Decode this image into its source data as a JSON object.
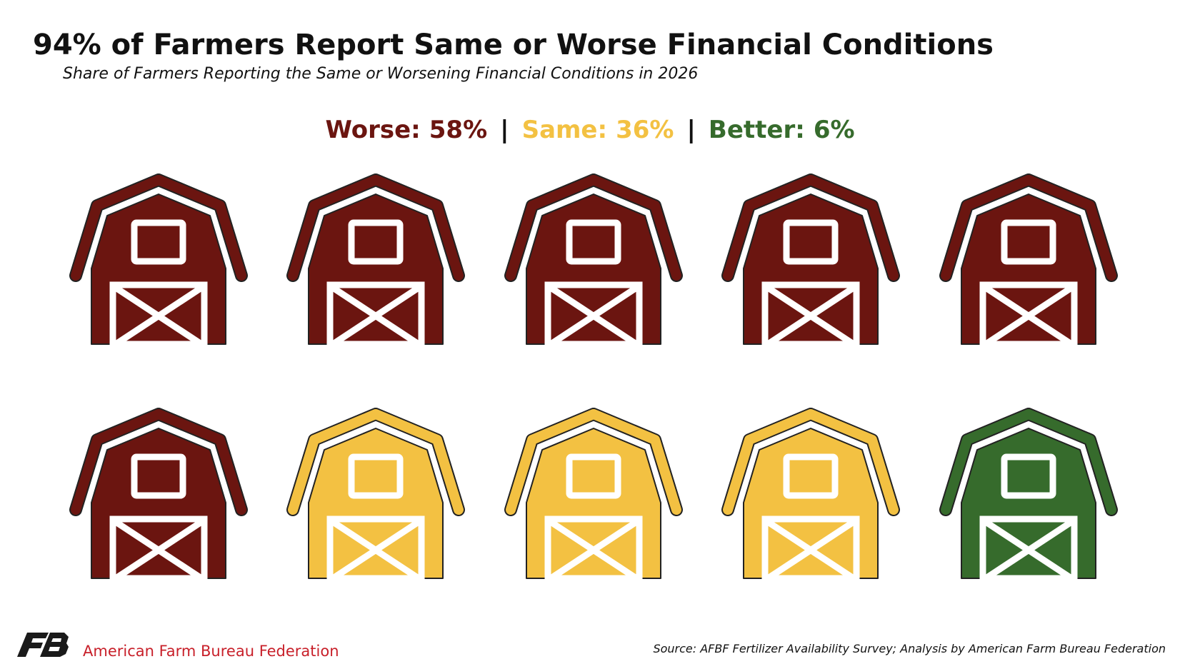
{
  "chart_data": {
    "type": "pictogram",
    "title": "94% of Farmers Report Same or Worse Financial Conditions",
    "subtitle": "Share of Farmers Reporting the Same or Worsening Financial Conditions in 2026",
    "categories": [
      "Worse:",
      "Same:",
      "Better:"
    ],
    "values": [
      58,
      36,
      6
    ],
    "value_labels": [
      "58%",
      "36%",
      "6%"
    ],
    "colors": [
      "#6b1510",
      "#f3c142",
      "#366b2c"
    ],
    "separators": [
      "|",
      "|"
    ],
    "organization": "American Farm Bureau Federation",
    "source": "Source: AFBF Fertilizer Availability Survey; Analysis by American Farm Bureau Federation"
  }
}
